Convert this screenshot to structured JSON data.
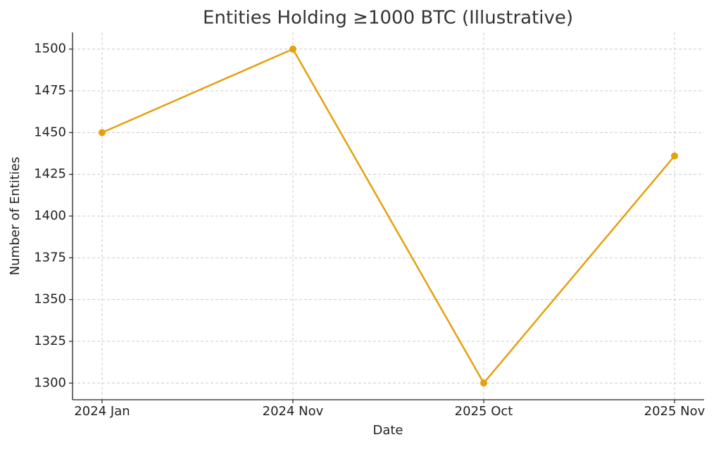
{
  "chart_data": {
    "type": "line",
    "title": "Entities Holding ≥1000 BTC (Illustrative)",
    "x_label": "Date",
    "y_label": "Number of Entities",
    "categories": [
      "2024 Jan",
      "2024 Nov",
      "2025 Oct",
      "2025 Nov"
    ],
    "values": [
      1450,
      1500,
      1300,
      1436
    ],
    "color": "#e5a00d",
    "ylim": [
      1290,
      1510
    ],
    "yticks": [
      1300,
      1325,
      1350,
      1375,
      1400,
      1425,
      1450,
      1475,
      1500
    ],
    "grid": true
  }
}
